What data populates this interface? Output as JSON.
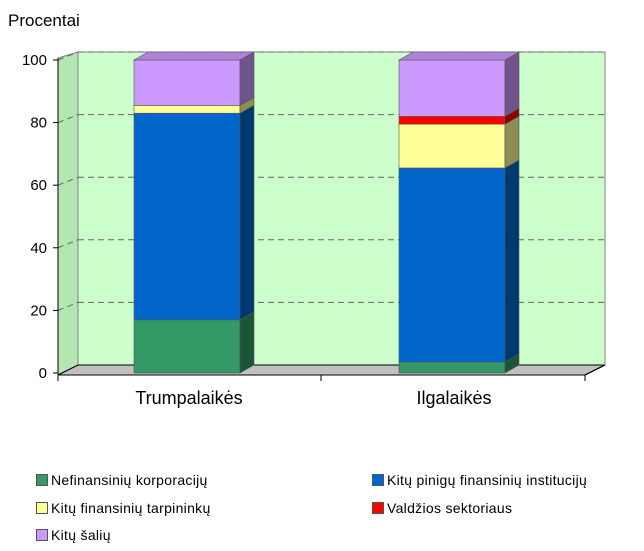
{
  "chart_data": {
    "type": "bar",
    "stacked": true,
    "three_d": true,
    "ylabel": "Procentai",
    "ylim": [
      0,
      100
    ],
    "yticks": [
      0,
      20,
      40,
      60,
      80,
      100
    ],
    "grid": "horizontal dashed",
    "plot_background": "#ccffcc",
    "categories": [
      "Trumpalaikės",
      "Ilgalaikės"
    ],
    "series": [
      {
        "name": "Nefinansinių korporacijų",
        "color": "#339966",
        "values": [
          17,
          3.5
        ]
      },
      {
        "name": "Kitų pinigų finansinių institucijų",
        "color": "#0066cc",
        "values": [
          66,
          62
        ]
      },
      {
        "name": "Kitų finansinių tarpininkų",
        "color": "#ffff99",
        "values": [
          2.5,
          14
        ]
      },
      {
        "name": "Valdžios sektoriaus",
        "color": "#ff0000",
        "values": [
          0,
          2.5
        ]
      },
      {
        "name": "Kitų šalių",
        "color": "#cc99ff",
        "values": [
          14.5,
          18
        ]
      }
    ],
    "legend_position": "bottom"
  }
}
